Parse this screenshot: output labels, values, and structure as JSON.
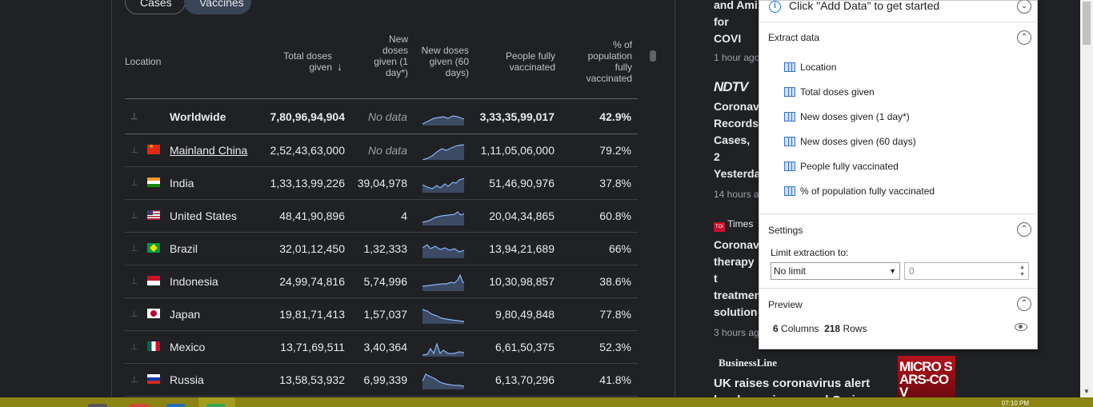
{
  "tabs": {
    "cases": "Cases",
    "vaccines": "Vaccines"
  },
  "table": {
    "headers": {
      "location": "Location",
      "total": "Total doses given",
      "new1": "New doses given (1 day*)",
      "new60": "New doses given (60 days)",
      "fully": "People fully vaccinated",
      "pct": "% of population fully vaccinated"
    },
    "rows": [
      {
        "name": "Worldwide",
        "total": "7,80,96,94,904",
        "new1": "No data",
        "fully": "3,33,35,99,017",
        "pct": "42.9%"
      },
      {
        "name": "Mainland China",
        "total": "2,52,43,63,000",
        "new1": "No data",
        "fully": "1,11,05,06,000",
        "pct": "79.2%"
      },
      {
        "name": "India",
        "total": "1,33,13,99,226",
        "new1": "39,04,978",
        "fully": "51,46,90,976",
        "pct": "37.8%"
      },
      {
        "name": "United States",
        "total": "48,41,90,896",
        "new1": "4",
        "fully": "20,04,34,865",
        "pct": "60.8%"
      },
      {
        "name": "Brazil",
        "total": "32,01,12,450",
        "new1": "1,32,333",
        "fully": "13,94,21,689",
        "pct": "66%"
      },
      {
        "name": "Indonesia",
        "total": "24,99,74,816",
        "new1": "5,74,996",
        "fully": "10,30,98,857",
        "pct": "38.6%"
      },
      {
        "name": "Japan",
        "total": "19,81,71,413",
        "new1": "1,57,037",
        "fully": "9,80,49,848",
        "pct": "77.8%"
      },
      {
        "name": "Mexico",
        "total": "13,71,69,511",
        "new1": "3,40,364",
        "fully": "6,61,50,375",
        "pct": "52.3%"
      },
      {
        "name": "Russia",
        "total": "13,58,53,932",
        "new1": "6,99,339",
        "fully": "6,13,70,296",
        "pct": "41.8%"
      }
    ]
  },
  "news": {
    "item1_title": "and Ami for COVI",
    "item1_time": "1 hour ago",
    "item2_source": "NDTV",
    "item2_title": "Coronav Records Cases, 2 Yesterda",
    "item2_time": "14 hours a",
    "item3_source": "Times",
    "item3_title": "Coronav therapy t treatmen solution",
    "item3_time": "3 hours ag",
    "item4_source": "BusinessLine",
    "item4_title": "UK raises coronavirus alert level over increased Omicron",
    "item4_image_text": "MICRO SARS-COV"
  },
  "popup": {
    "info": "Click \"Add Data\" to get started",
    "extract_title": "Extract data",
    "columns": [
      "Location",
      "Total doses given",
      "New doses given (1 day*)",
      "New doses given (60 days)",
      "People fully vaccinated",
      "% of population fully vaccinated"
    ],
    "settings_title": "Settings",
    "limit_label": "Limit extraction to:",
    "limit_value": "No limit",
    "limit_number": "0",
    "preview_title": "Preview",
    "preview_columns": "6",
    "preview_columns_label": "Columns",
    "preview_rows": "218",
    "preview_rows_label": "Rows"
  },
  "taskbar": {
    "time": "07:10 PM"
  },
  "colors": {
    "background": "#202124",
    "accent_pill": "#394457",
    "taskbar": "#8c8412",
    "link_blue": "#1a73e8"
  }
}
